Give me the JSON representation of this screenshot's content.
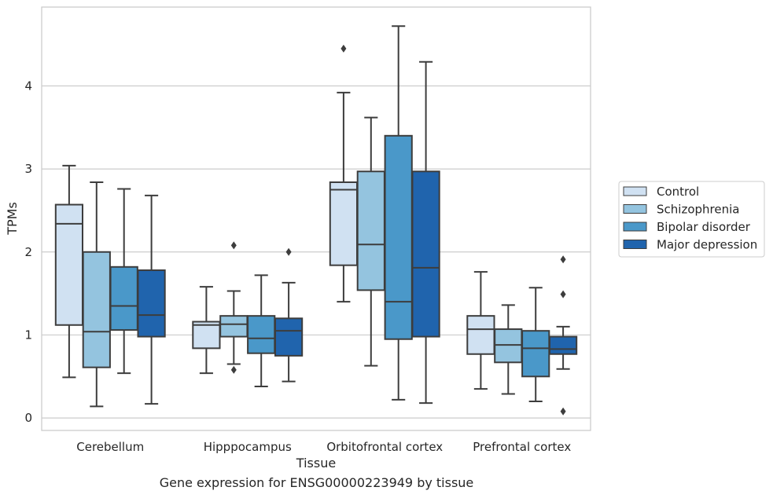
{
  "caption": "Gene expression for ENSG00000223949 by tissue",
  "chart_data": {
    "type": "boxplot",
    "xlabel": "Tissue",
    "ylabel": "TPMs",
    "ylim": [
      -0.15,
      4.95
    ],
    "yticks": [
      0,
      1,
      2,
      3,
      4
    ],
    "grid": "horizontal",
    "legend_position": "center-right",
    "categories": [
      "Cerebellum",
      "Hipppocampus",
      "Orbitofrontal cortex",
      "Prefrontal cortex"
    ],
    "series": [
      {
        "name": "Control",
        "color": "#d0e1f2",
        "boxes": [
          {
            "whislo": 0.49,
            "q1": 1.12,
            "med": 2.34,
            "q3": 2.57,
            "whishi": 3.04,
            "fliers": []
          },
          {
            "whislo": 0.54,
            "q1": 0.84,
            "med": 1.12,
            "q3": 1.16,
            "whishi": 1.58,
            "fliers": []
          },
          {
            "whislo": 1.4,
            "q1": 1.84,
            "med": 2.75,
            "q3": 2.84,
            "whishi": 3.92,
            "fliers": [
              4.45
            ]
          },
          {
            "whislo": 0.35,
            "q1": 0.77,
            "med": 1.07,
            "q3": 1.23,
            "whishi": 1.76,
            "fliers": []
          }
        ]
      },
      {
        "name": "Schizophrenia",
        "color": "#94c4df",
        "boxes": [
          {
            "whislo": 0.14,
            "q1": 0.61,
            "med": 1.04,
            "q3": 2.0,
            "whishi": 2.84,
            "fliers": []
          },
          {
            "whislo": 0.65,
            "q1": 0.98,
            "med": 1.13,
            "q3": 1.23,
            "whishi": 1.53,
            "fliers": [
              2.08,
              0.58
            ]
          },
          {
            "whislo": 0.63,
            "q1": 1.54,
            "med": 2.09,
            "q3": 2.97,
            "whishi": 3.62,
            "fliers": []
          },
          {
            "whislo": 0.29,
            "q1": 0.67,
            "med": 0.88,
            "q3": 1.07,
            "whishi": 1.36,
            "fliers": []
          }
        ]
      },
      {
        "name": "Bipolar disorder",
        "color": "#4a98c9",
        "boxes": [
          {
            "whislo": 0.54,
            "q1": 1.06,
            "med": 1.35,
            "q3": 1.82,
            "whishi": 2.76,
            "fliers": []
          },
          {
            "whislo": 0.38,
            "q1": 0.78,
            "med": 0.96,
            "q3": 1.23,
            "whishi": 1.72,
            "fliers": []
          },
          {
            "whislo": 0.22,
            "q1": 0.95,
            "med": 1.4,
            "q3": 3.4,
            "whishi": 4.72,
            "fliers": []
          },
          {
            "whislo": 0.2,
            "q1": 0.5,
            "med": 0.84,
            "q3": 1.05,
            "whishi": 1.57,
            "fliers": []
          }
        ]
      },
      {
        "name": "Major depression",
        "color": "#2064ad",
        "boxes": [
          {
            "whislo": 0.17,
            "q1": 0.98,
            "med": 1.24,
            "q3": 1.78,
            "whishi": 2.68,
            "fliers": []
          },
          {
            "whislo": 0.44,
            "q1": 0.75,
            "med": 1.05,
            "q3": 1.2,
            "whishi": 1.63,
            "fliers": [
              2.0
            ]
          },
          {
            "whislo": 0.18,
            "q1": 0.98,
            "med": 1.81,
            "q3": 2.97,
            "whishi": 4.29,
            "fliers": []
          },
          {
            "whislo": 0.59,
            "q1": 0.77,
            "med": 0.83,
            "q3": 0.98,
            "whishi": 1.1,
            "fliers": [
              1.91,
              1.49,
              0.08
            ]
          }
        ]
      }
    ]
  }
}
